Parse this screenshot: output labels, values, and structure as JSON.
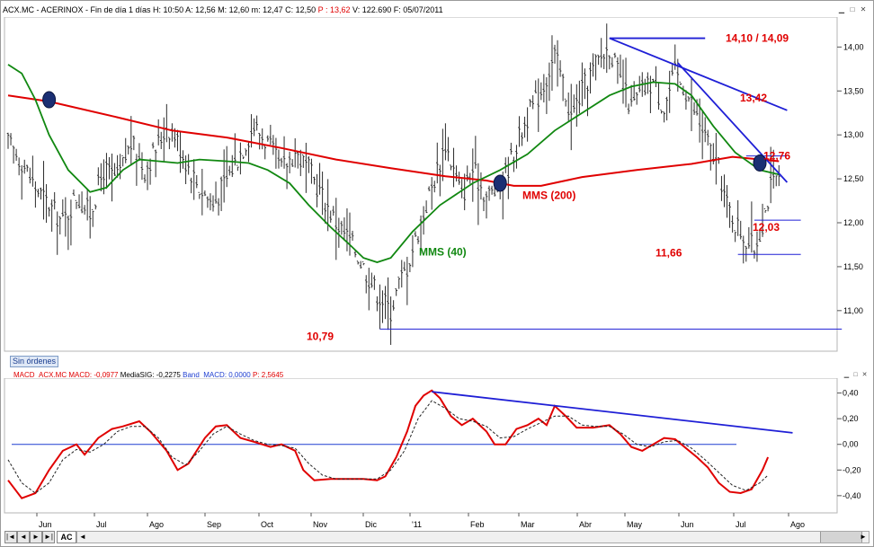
{
  "header": {
    "text": "ACX.MC - ACERINOX - Fin de día 1 días  H: 10:50  A: 12,56  M: 12,60  m: 12,47  C: 12,50 ",
    "pchange": "P : 13,62",
    "tail": "  V: 122.690  F: 05/07/2011"
  },
  "sin_ordenes": "Sin órdenes",
  "indicator_header": {
    "name": "MACD_ACX.MC",
    "macd": "MACD: -0,0977",
    "signal": "MediaSIG: -0,2275",
    "band": "Band_MACD: 0,0000",
    "p": "P: 2,5645"
  },
  "nav": {
    "tab": "AC",
    "first": "|◄",
    "prev": "◄",
    "next": "►",
    "last": "►|"
  },
  "icons": [
    "minimize-icon",
    "maximize-icon",
    "close-icon"
  ],
  "colors": {
    "bars": "#2b2b2b",
    "mms200": "#e00000",
    "mms40": "#118811",
    "trend": "#1f1fd6",
    "annot": "#e00000",
    "macd": "#e00000",
    "signal": "#222222",
    "band": "#1f3fd1"
  },
  "chart_data": [
    {
      "type": "line",
      "title": "",
      "xlabel": "",
      "ylabel": "",
      "x_ticks": [
        "Jun",
        "Jul",
        "Ago",
        "Sep",
        "Oct",
        "Nov",
        "Dic",
        "'11",
        "Feb",
        "Mar",
        "Abr",
        "May",
        "Jun",
        "Jul",
        "Ago"
      ],
      "y_ticks": [
        "11,00",
        "11,50",
        "12,00",
        "12,50",
        "13,00",
        "13,50",
        "14,00"
      ],
      "ylim": [
        10.62,
        14.3
      ],
      "grid": false,
      "price_bars_close": [
        [
          0,
          12.9
        ],
        [
          5,
          12.7
        ],
        [
          10,
          12.4
        ],
        [
          15,
          12.2
        ],
        [
          20,
          12.0
        ],
        [
          25,
          12.3
        ],
        [
          30,
          12.1
        ],
        [
          35,
          12.6
        ],
        [
          40,
          12.5
        ],
        [
          45,
          12.9
        ],
        [
          50,
          12.6
        ],
        [
          55,
          12.9
        ],
        [
          58,
          13.1
        ],
        [
          61,
          13.0
        ],
        [
          65,
          12.7
        ],
        [
          70,
          12.4
        ],
        [
          75,
          12.2
        ],
        [
          80,
          12.5
        ],
        [
          85,
          12.8
        ],
        [
          90,
          13.1
        ],
        [
          95,
          12.9
        ],
        [
          100,
          12.6
        ],
        [
          105,
          12.8
        ],
        [
          110,
          12.6
        ],
        [
          115,
          12.3
        ],
        [
          120,
          12.0
        ],
        [
          125,
          11.8
        ],
        [
          130,
          11.5
        ],
        [
          135,
          11.2
        ],
        [
          140,
          11.0
        ],
        [
          143,
          11.3
        ],
        [
          146,
          11.5
        ],
        [
          150,
          11.9
        ],
        [
          155,
          12.4
        ],
        [
          160,
          12.9
        ],
        [
          163,
          12.6
        ],
        [
          166,
          12.3
        ],
        [
          170,
          12.6
        ],
        [
          175,
          12.3
        ],
        [
          180,
          12.4
        ],
        [
          185,
          12.8
        ],
        [
          190,
          13.2
        ],
        [
          195,
          13.5
        ],
        [
          200,
          13.9
        ],
        [
          203,
          13.6
        ],
        [
          206,
          13.2
        ],
        [
          210,
          13.5
        ],
        [
          215,
          13.8
        ],
        [
          220,
          14.0
        ],
        [
          224,
          13.6
        ],
        [
          228,
          13.3
        ],
        [
          232,
          13.5
        ],
        [
          236,
          13.6
        ],
        [
          240,
          13.3
        ],
        [
          244,
          13.7
        ],
        [
          248,
          13.5
        ],
        [
          252,
          13.2
        ],
        [
          256,
          12.9
        ],
        [
          260,
          12.6
        ],
        [
          263,
          12.2
        ],
        [
          266,
          12.0
        ],
        [
          270,
          11.8
        ],
        [
          273,
          11.7
        ],
        [
          276,
          12.0
        ],
        [
          279,
          12.4
        ],
        [
          282,
          12.5
        ]
      ],
      "series": [
        {
          "name": "MMS (200)",
          "color": "#e00000",
          "points": [
            [
              0,
              13.45
            ],
            [
              15,
              13.38
            ],
            [
              40,
              13.2
            ],
            [
              60,
              13.05
            ],
            [
              80,
              12.97
            ],
            [
              100,
              12.85
            ],
            [
              120,
              12.72
            ],
            [
              140,
              12.62
            ],
            [
              160,
              12.53
            ],
            [
              175,
              12.48
            ],
            [
              185,
              12.42
            ],
            [
              195,
              12.42
            ],
            [
              210,
              12.52
            ],
            [
              230,
              12.6
            ],
            [
              250,
              12.67
            ],
            [
              265,
              12.75
            ],
            [
              282,
              12.7
            ]
          ]
        },
        {
          "name": "MMS (40)",
          "color": "#118811",
          "points": [
            [
              0,
              13.8
            ],
            [
              5,
              13.7
            ],
            [
              10,
              13.4
            ],
            [
              15,
              13.0
            ],
            [
              22,
              12.6
            ],
            [
              30,
              12.35
            ],
            [
              36,
              12.4
            ],
            [
              42,
              12.6
            ],
            [
              48,
              12.72
            ],
            [
              55,
              12.7
            ],
            [
              62,
              12.68
            ],
            [
              70,
              12.72
            ],
            [
              80,
              12.7
            ],
            [
              88,
              12.68
            ],
            [
              95,
              12.6
            ],
            [
              103,
              12.45
            ],
            [
              110,
              12.2
            ],
            [
              118,
              11.95
            ],
            [
              125,
              11.75
            ],
            [
              130,
              11.6
            ],
            [
              135,
              11.55
            ],
            [
              140,
              11.6
            ],
            [
              148,
              11.9
            ],
            [
              158,
              12.2
            ],
            [
              170,
              12.45
            ],
            [
              180,
              12.6
            ],
            [
              190,
              12.78
            ],
            [
              200,
              13.05
            ],
            [
              210,
              13.25
            ],
            [
              220,
              13.45
            ],
            [
              228,
              13.55
            ],
            [
              236,
              13.6
            ],
            [
              244,
              13.58
            ],
            [
              250,
              13.45
            ],
            [
              258,
              13.1
            ],
            [
              266,
              12.8
            ],
            [
              275,
              12.6
            ],
            [
              282,
              12.55
            ]
          ]
        }
      ],
      "trendlines": [
        {
          "from": [
            220,
            14.1
          ],
          "to": [
            255,
            14.1
          ]
        },
        {
          "from": [
            220,
            14.1
          ],
          "to": [
            285,
            13.28
          ]
        },
        {
          "from": [
            245,
            13.82
          ],
          "to": [
            285,
            12.46
          ]
        },
        {
          "from": [
            136,
            10.79
          ],
          "to": [
            305,
            10.79
          ]
        },
        {
          "from": [
            270,
            12.76
          ],
          "to": [
            285,
            12.76
          ]
        },
        {
          "from": [
            273,
            12.03
          ],
          "to": [
            290,
            12.03
          ]
        },
        {
          "from": [
            267,
            11.64
          ],
          "to": [
            290,
            11.64
          ]
        }
      ],
      "markers": [
        [
          15,
          13.4
        ],
        [
          180,
          12.45
        ],
        [
          275,
          12.68
        ]
      ],
      "annotations": [
        "14,10 / 14,09",
        "13,42",
        "12,76",
        "12,03",
        "11,66",
        "10,79",
        "MMS (200)",
        "MMS (40)"
      ]
    },
    {
      "type": "line",
      "title": "",
      "xlabel": "",
      "ylabel": "",
      "y_ticks": [
        "-0,40",
        "-0,20",
        "0,00",
        "0,20",
        "0,40"
      ],
      "ylim": [
        -0.52,
        0.46
      ],
      "grid": false,
      "series": [
        {
          "name": "MACD",
          "color": "#e00000",
          "points": [
            [
              0,
              -0.28
            ],
            [
              5,
              -0.42
            ],
            [
              10,
              -0.38
            ],
            [
              15,
              -0.2
            ],
            [
              20,
              -0.05
            ],
            [
              25,
              0.0
            ],
            [
              28,
              -0.08
            ],
            [
              33,
              0.05
            ],
            [
              38,
              0.12
            ],
            [
              42,
              0.14
            ],
            [
              48,
              0.18
            ],
            [
              52,
              0.1
            ],
            [
              58,
              -0.05
            ],
            [
              62,
              -0.2
            ],
            [
              66,
              -0.15
            ],
            [
              72,
              0.05
            ],
            [
              76,
              0.14
            ],
            [
              80,
              0.15
            ],
            [
              85,
              0.05
            ],
            [
              90,
              0.02
            ],
            [
              96,
              -0.02
            ],
            [
              100,
              0.0
            ],
            [
              105,
              -0.05
            ],
            [
              108,
              -0.2
            ],
            [
              112,
              -0.28
            ],
            [
              118,
              -0.27
            ],
            [
              124,
              -0.27
            ],
            [
              130,
              -0.27
            ],
            [
              135,
              -0.28
            ],
            [
              138,
              -0.25
            ],
            [
              142,
              -0.1
            ],
            [
              146,
              0.1
            ],
            [
              149,
              0.3
            ],
            [
              152,
              0.38
            ],
            [
              155,
              0.42
            ],
            [
              158,
              0.36
            ],
            [
              162,
              0.22
            ],
            [
              166,
              0.15
            ],
            [
              170,
              0.2
            ],
            [
              175,
              0.1
            ],
            [
              178,
              0.0
            ],
            [
              182,
              0.0
            ],
            [
              186,
              0.12
            ],
            [
              190,
              0.15
            ],
            [
              194,
              0.2
            ],
            [
              197,
              0.15
            ],
            [
              200,
              0.3
            ],
            [
              204,
              0.22
            ],
            [
              208,
              0.13
            ],
            [
              214,
              0.13
            ],
            [
              220,
              0.15
            ],
            [
              224,
              0.08
            ],
            [
              228,
              -0.02
            ],
            [
              232,
              -0.05
            ],
            [
              236,
              0.0
            ],
            [
              240,
              0.05
            ],
            [
              244,
              0.04
            ],
            [
              248,
              -0.03
            ],
            [
              252,
              -0.1
            ],
            [
              256,
              -0.18
            ],
            [
              260,
              -0.3
            ],
            [
              264,
              -0.37
            ],
            [
              268,
              -0.38
            ],
            [
              272,
              -0.35
            ],
            [
              276,
              -0.2
            ],
            [
              278,
              -0.1
            ]
          ]
        },
        {
          "name": "MediaSIG",
          "color": "#222222",
          "points": [
            [
              0,
              -0.12
            ],
            [
              5,
              -0.3
            ],
            [
              10,
              -0.38
            ],
            [
              15,
              -0.3
            ],
            [
              20,
              -0.12
            ],
            [
              25,
              -0.04
            ],
            [
              30,
              -0.06
            ],
            [
              35,
              0.0
            ],
            [
              40,
              0.1
            ],
            [
              45,
              0.14
            ],
            [
              50,
              0.14
            ],
            [
              55,
              0.05
            ],
            [
              60,
              -0.1
            ],
            [
              65,
              -0.16
            ],
            [
              70,
              -0.05
            ],
            [
              75,
              0.08
            ],
            [
              80,
              0.14
            ],
            [
              85,
              0.08
            ],
            [
              90,
              0.03
            ],
            [
              95,
              0.0
            ],
            [
              100,
              -0.01
            ],
            [
              105,
              -0.03
            ],
            [
              110,
              -0.15
            ],
            [
              115,
              -0.24
            ],
            [
              120,
              -0.27
            ],
            [
              125,
              -0.27
            ],
            [
              130,
              -0.27
            ],
            [
              135,
              -0.27
            ],
            [
              140,
              -0.2
            ],
            [
              145,
              -0.05
            ],
            [
              150,
              0.2
            ],
            [
              155,
              0.34
            ],
            [
              160,
              0.28
            ],
            [
              165,
              0.2
            ],
            [
              170,
              0.18
            ],
            [
              175,
              0.14
            ],
            [
              180,
              0.05
            ],
            [
              185,
              0.06
            ],
            [
              190,
              0.12
            ],
            [
              195,
              0.17
            ],
            [
              200,
              0.22
            ],
            [
              205,
              0.22
            ],
            [
              210,
              0.15
            ],
            [
              215,
              0.14
            ],
            [
              220,
              0.14
            ],
            [
              225,
              0.08
            ],
            [
              230,
              0.0
            ],
            [
              235,
              -0.02
            ],
            [
              240,
              0.02
            ],
            [
              245,
              0.03
            ],
            [
              250,
              -0.03
            ],
            [
              255,
              -0.12
            ],
            [
              260,
              -0.22
            ],
            [
              265,
              -0.32
            ],
            [
              270,
              -0.36
            ],
            [
              275,
              -0.3
            ],
            [
              278,
              -0.24
            ]
          ]
        }
      ],
      "band_line": 0.0,
      "trendline": {
        "from": [
          155,
          0.41
        ],
        "to": [
          287,
          0.09
        ]
      }
    }
  ]
}
